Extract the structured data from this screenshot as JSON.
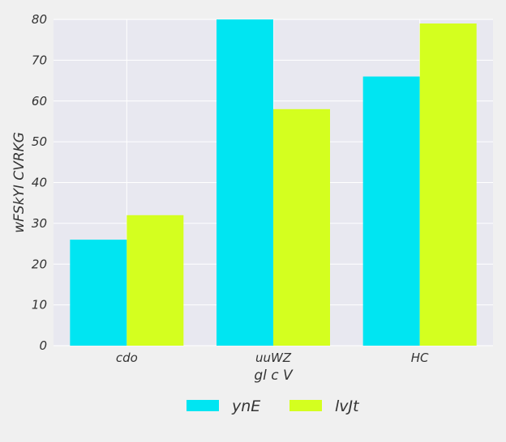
{
  "chart_data": {
    "type": "bar",
    "title": "",
    "xlabel": "gl c  V",
    "ylabel": "wFSkYI CVRKG",
    "categories": [
      "cdo",
      "uuWZ",
      "HC"
    ],
    "series": [
      {
        "name": "ynE",
        "values": [
          26,
          80,
          66
        ],
        "color": "#00e5f2"
      },
      {
        "name": "lvJt",
        "values": [
          32,
          58,
          79
        ],
        "color": "#d4ff1f"
      }
    ],
    "ylim": [
      0,
      80
    ],
    "yticks": [
      0,
      10,
      20,
      30,
      40,
      50,
      60,
      70,
      80
    ],
    "grid": true,
    "legend_position": "bottom-center"
  },
  "colors": {
    "plot_background": "#e8e8f0",
    "page_background": "#f0f0f0",
    "grid": "#ffffff"
  }
}
